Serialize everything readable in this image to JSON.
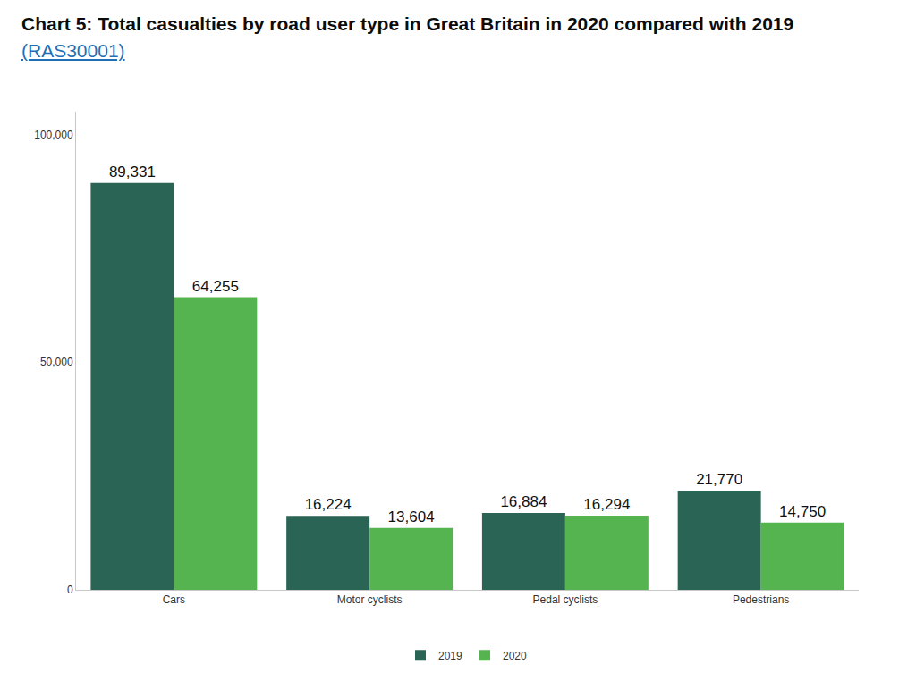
{
  "chart_data": {
    "type": "bar",
    "title": "Chart 5: Total casualties by road user type in Great Britain in 2020 compared with 2019 (RAS30001)",
    "categories": [
      "Cars",
      "Motor cyclists",
      "Pedal cyclists",
      "Pedestrians"
    ],
    "series": [
      {
        "name": "2019",
        "color": "#2a6454",
        "values": [
          89331,
          16224,
          16884,
          21770
        ],
        "value_labels": [
          "89,331",
          "16,224",
          "16,884",
          "21,770"
        ]
      },
      {
        "name": "2020",
        "color": "#55b350",
        "values": [
          64255,
          13604,
          16294,
          14750
        ],
        "value_labels": [
          "64,255",
          "13,604",
          "16,294",
          "14,750"
        ]
      }
    ],
    "ylim": [
      0,
      105000
    ],
    "yticks": [
      0,
      {
        "value": 50000,
        "label": "50,000"
      },
      {
        "value": 100000,
        "label": "100,000"
      }
    ],
    "grid": false,
    "data_labels": true,
    "legend": "bottom"
  }
}
